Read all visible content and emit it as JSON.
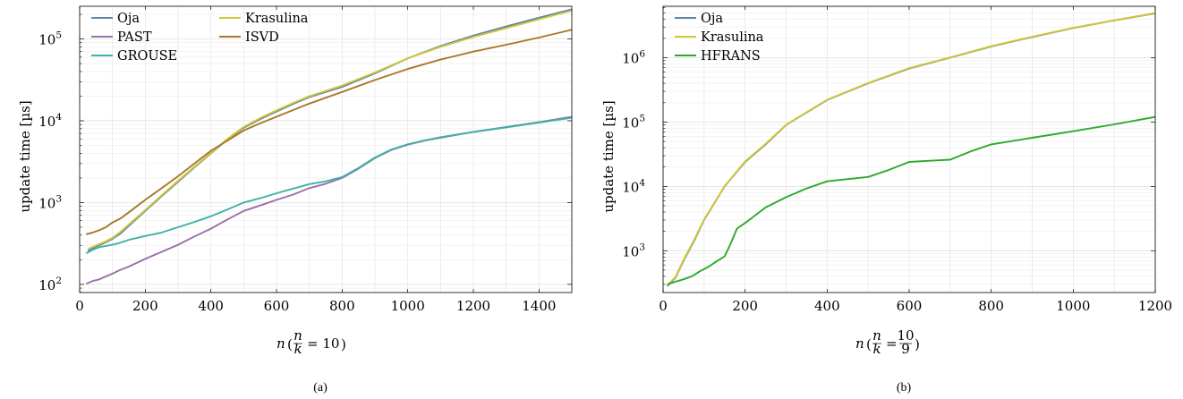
{
  "figure": {
    "captions": [
      "(a)",
      "(b)"
    ]
  },
  "chart_data": [
    {
      "type": "line",
      "yscale": "log",
      "xlim": [
        0,
        1500
      ],
      "ylim_exp": [
        1.9,
        5.4
      ],
      "xticks": [
        0,
        200,
        400,
        600,
        800,
        1000,
        1200,
        1400
      ],
      "yticks_exp": [
        2,
        3,
        4,
        5
      ],
      "ylabel": "update time [µs]",
      "xlabel_pre": "n",
      "xlabel_frac_num": "n",
      "xlabel_frac_den": "k",
      "xlabel_rhs": "= 10",
      "grid": true,
      "legend_position": "top-left",
      "series": [
        {
          "name": "Oja",
          "color": "#5c85a6",
          "points": [
            [
              25,
              255
            ],
            [
              50,
              290
            ],
            [
              75,
              320
            ],
            [
              100,
              360
            ],
            [
              125,
              420
            ],
            [
              150,
              520
            ],
            [
              200,
              790
            ],
            [
              250,
              1200
            ],
            [
              300,
              1800
            ],
            [
              350,
              2700
            ],
            [
              400,
              4000
            ],
            [
              450,
              5900
            ],
            [
              500,
              8200
            ],
            [
              550,
              10500
            ],
            [
              600,
              13000
            ],
            [
              650,
              16000
            ],
            [
              700,
              19500
            ],
            [
              800,
              26000
            ],
            [
              900,
              38000
            ],
            [
              1000,
              58000
            ],
            [
              1100,
              82000
            ],
            [
              1200,
              110000
            ],
            [
              1300,
              142000
            ],
            [
              1400,
              182000
            ],
            [
              1500,
              230000
            ]
          ]
        },
        {
          "name": "PAST",
          "color": "#9b6fa8",
          "points": [
            [
              20,
              102
            ],
            [
              40,
              110
            ],
            [
              60,
              115
            ],
            [
              80,
              125
            ],
            [
              100,
              135
            ],
            [
              120,
              148
            ],
            [
              150,
              165
            ],
            [
              200,
              205
            ],
            [
              250,
              250
            ],
            [
              300,
              305
            ],
            [
              350,
              385
            ],
            [
              400,
              480
            ],
            [
              450,
              620
            ],
            [
              500,
              790
            ],
            [
              550,
              920
            ],
            [
              600,
              1080
            ],
            [
              650,
              1250
            ],
            [
              700,
              1500
            ],
            [
              750,
              1700
            ],
            [
              800,
              2000
            ],
            [
              850,
              2600
            ],
            [
              900,
              3500
            ],
            [
              950,
              4400
            ],
            [
              1000,
              5100
            ],
            [
              1050,
              5700
            ],
            [
              1100,
              6200
            ],
            [
              1200,
              7300
            ],
            [
              1300,
              8400
            ],
            [
              1400,
              9600
            ],
            [
              1500,
              11200
            ]
          ]
        },
        {
          "name": "GROUSE",
          "color": "#3cb3a6",
          "points": [
            [
              20,
              240
            ],
            [
              40,
              265
            ],
            [
              60,
              285
            ],
            [
              80,
              295
            ],
            [
              100,
              305
            ],
            [
              120,
              320
            ],
            [
              150,
              350
            ],
            [
              200,
              390
            ],
            [
              250,
              430
            ],
            [
              300,
              500
            ],
            [
              350,
              580
            ],
            [
              400,
              680
            ],
            [
              450,
              820
            ],
            [
              500,
              1000
            ],
            [
              550,
              1130
            ],
            [
              600,
              1300
            ],
            [
              650,
              1480
            ],
            [
              700,
              1680
            ],
            [
              750,
              1820
            ],
            [
              800,
              2050
            ],
            [
              850,
              2650
            ],
            [
              900,
              3550
            ],
            [
              950,
              4450
            ],
            [
              1000,
              5150
            ],
            [
              1050,
              5750
            ],
            [
              1100,
              6300
            ],
            [
              1200,
              7300
            ],
            [
              1300,
              8300
            ],
            [
              1400,
              9500
            ],
            [
              1500,
              10900
            ]
          ]
        },
        {
          "name": "Krasulina",
          "color": "#d2c63a",
          "points": [
            [
              25,
              270
            ],
            [
              50,
              300
            ],
            [
              75,
              330
            ],
            [
              100,
              370
            ],
            [
              125,
              440
            ],
            [
              150,
              540
            ],
            [
              200,
              810
            ],
            [
              250,
              1230
            ],
            [
              300,
              1850
            ],
            [
              350,
              2750
            ],
            [
              400,
              4050
            ],
            [
              450,
              6000
            ],
            [
              500,
              8400
            ],
            [
              550,
              10800
            ],
            [
              600,
              13400
            ],
            [
              650,
              16500
            ],
            [
              700,
              20000
            ],
            [
              800,
              27000
            ],
            [
              900,
              39000
            ],
            [
              1000,
              58000
            ],
            [
              1100,
              80000
            ],
            [
              1200,
              106000
            ],
            [
              1300,
              136000
            ],
            [
              1400,
              174000
            ],
            [
              1500,
              222000
            ]
          ]
        },
        {
          "name": "ISVD",
          "color": "#a8782a",
          "points": [
            [
              20,
              410
            ],
            [
              40,
              430
            ],
            [
              60,
              460
            ],
            [
              80,
              500
            ],
            [
              100,
              570
            ],
            [
              125,
              640
            ],
            [
              150,
              760
            ],
            [
              200,
              1080
            ],
            [
              250,
              1500
            ],
            [
              300,
              2100
            ],
            [
              350,
              3000
            ],
            [
              400,
              4300
            ],
            [
              450,
              5700
            ],
            [
              500,
              7600
            ],
            [
              550,
              9300
            ],
            [
              600,
              11200
            ],
            [
              650,
              13500
            ],
            [
              700,
              16200
            ],
            [
              800,
              22500
            ],
            [
              900,
              31500
            ],
            [
              1000,
              43000
            ],
            [
              1100,
              56000
            ],
            [
              1200,
              70000
            ],
            [
              1300,
              85000
            ],
            [
              1400,
              104000
            ],
            [
              1500,
              130000
            ]
          ]
        }
      ]
    },
    {
      "type": "line",
      "yscale": "log",
      "xlim": [
        0,
        1200
      ],
      "ylim_exp": [
        2.35,
        6.8
      ],
      "xticks": [
        0,
        200,
        400,
        600,
        800,
        1000,
        1200
      ],
      "yticks_exp": [
        3,
        4,
        5,
        6
      ],
      "ylabel": "update time [µs]",
      "xlabel_pre": "n",
      "xlabel_frac_num": "n",
      "xlabel_frac_den": "k",
      "xlabel_rhs_num": "10",
      "xlabel_rhs_den": "9",
      "grid": true,
      "legend_position": "top-left",
      "series": [
        {
          "name": "Oja",
          "color": "#5c85a6",
          "points": [
            [
              10,
              280
            ],
            [
              30,
              380
            ],
            [
              50,
              700
            ],
            [
              75,
              1400
            ],
            [
              100,
              3000
            ],
            [
              150,
              10000
            ],
            [
              200,
              24000
            ],
            [
              250,
              45000
            ],
            [
              300,
              90000
            ],
            [
              400,
              220000
            ],
            [
              500,
              400000
            ],
            [
              600,
              680000
            ],
            [
              700,
              1000000
            ],
            [
              800,
              1500000
            ],
            [
              900,
              2100000
            ],
            [
              1000,
              2900000
            ],
            [
              1100,
              3800000
            ],
            [
              1200,
              4900000
            ]
          ]
        },
        {
          "name": "Krasulina",
          "color": "#d2c63a",
          "points": [
            [
              10,
              290
            ],
            [
              30,
              390
            ],
            [
              50,
              720
            ],
            [
              75,
              1450
            ],
            [
              100,
              3050
            ],
            [
              150,
              10100
            ],
            [
              200,
              24500
            ],
            [
              250,
              46000
            ],
            [
              300,
              91000
            ],
            [
              400,
              222000
            ],
            [
              500,
              405000
            ],
            [
              600,
              690000
            ],
            [
              700,
              1010000
            ],
            [
              800,
              1520000
            ],
            [
              900,
              2120000
            ],
            [
              1000,
              2920000
            ],
            [
              1100,
              3820000
            ],
            [
              1200,
              4950000
            ]
          ]
        },
        {
          "name": "HFRANS",
          "color": "#2aaa2a",
          "points": [
            [
              10,
              300
            ],
            [
              30,
              330
            ],
            [
              50,
              360
            ],
            [
              70,
              400
            ],
            [
              90,
              480
            ],
            [
              110,
              560
            ],
            [
              130,
              680
            ],
            [
              150,
              820
            ],
            [
              165,
              1300
            ],
            [
              180,
              2200
            ],
            [
              200,
              2700
            ],
            [
              250,
              4700
            ],
            [
              300,
              6800
            ],
            [
              350,
              9300
            ],
            [
              400,
              12000
            ],
            [
              450,
              13000
            ],
            [
              500,
              14000
            ],
            [
              550,
              18000
            ],
            [
              600,
              24000
            ],
            [
              650,
              25000
            ],
            [
              700,
              26000
            ],
            [
              750,
              35000
            ],
            [
              800,
              45000
            ],
            [
              900,
              57000
            ],
            [
              1000,
              72000
            ],
            [
              1100,
              92000
            ],
            [
              1200,
              120000
            ]
          ]
        }
      ]
    }
  ]
}
